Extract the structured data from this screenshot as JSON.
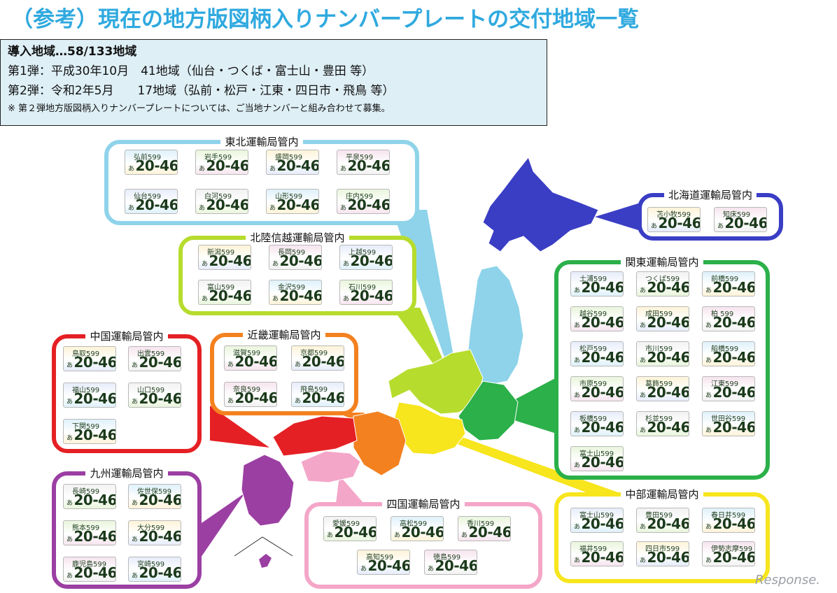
{
  "title": "（参考）現在の地方版図柄入りナンバープレートの交付地域一覧",
  "info": {
    "heading": "導入地域…58/133地域",
    "line1": "第1弾：平成30年10月　41地域（仙台・つくば・富士山・豊田 等）",
    "line2": "第2弾：令和2年5月　　17地域（弘前・松戸・江東・四日市・飛鳥 等）",
    "note": "※ 第２弾地方版図柄入りナンバープレートについては、ご当地ナンバーと組み合わせて募集。"
  },
  "plate_number": "20-46",
  "plate_kana": "あ",
  "regions": {
    "tohoku": {
      "name": "東北運輸局管内",
      "color": "#8ed3ea",
      "plates": [
        "弘前599",
        "岩手599",
        "盛岡599",
        "平泉599",
        "仙台599",
        "白河599",
        "山形599",
        "庄内599"
      ]
    },
    "hokuriku": {
      "name": "北陸信越運輸局管内",
      "color": "#b6dc2d",
      "plates": [
        "新潟599",
        "長岡599",
        "上越599",
        "富山599",
        "金沢599",
        "石川599"
      ]
    },
    "hokkaido": {
      "name": "北海道運輸局管内",
      "color": "#3a3ec4",
      "plates": [
        "苫小牧599",
        "知床599"
      ]
    },
    "kanto": {
      "name": "関東運輸局管内",
      "color": "#2bb04a",
      "plates": [
        "土浦599",
        "つくば599",
        "前橋599",
        "越谷599",
        "成田599",
        "柏 599",
        "松戸599",
        "市川599",
        "船橋599",
        "市原599",
        "葛飾599",
        "江東599",
        "板橋599",
        "杉並599",
        "世田谷599",
        "富士山599"
      ]
    },
    "chugoku": {
      "name": "中国運輸局管内",
      "color": "#e52024",
      "plates": [
        "鳥取599",
        "出雲599",
        "福山599",
        "山口599",
        "下関599"
      ]
    },
    "kinki": {
      "name": "近畿運輸局管内",
      "color": "#f3811f",
      "plates": [
        "滋賀599",
        "京都599",
        "奈良599",
        "飛鳥599"
      ]
    },
    "kyushu": {
      "name": "九州運輸局管内",
      "color": "#9b3fa3",
      "plates": [
        "長崎599",
        "佐世保599",
        "熊本599",
        "大分599",
        "鹿児島599",
        "宮崎599"
      ]
    },
    "shikoku": {
      "name": "四国運輸局管内",
      "color": "#f4a6c8",
      "plates": [
        "愛媛599",
        "高松599",
        "香川599",
        "高知599",
        "徳島599"
      ]
    },
    "chubu": {
      "name": "中部運輸局管内",
      "color": "#f7e51d",
      "plates": [
        "富士山599",
        "豊田599",
        "春日井599",
        "福井599",
        "四日市599",
        "伊勢志摩599"
      ]
    }
  },
  "watermark": "Response."
}
